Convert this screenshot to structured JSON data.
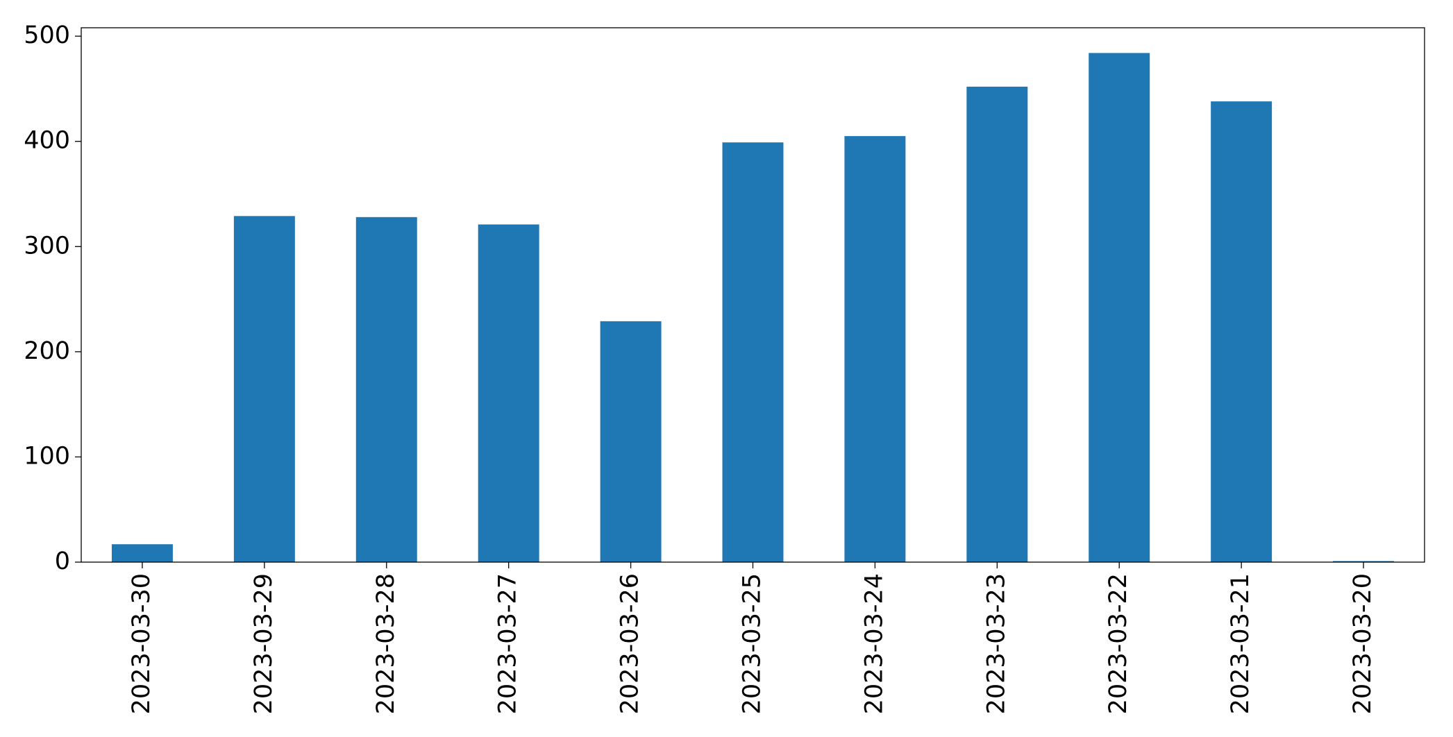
{
  "chart_data": {
    "type": "bar",
    "categories": [
      "2023-03-30",
      "2023-03-29",
      "2023-03-28",
      "2023-03-27",
      "2023-03-26",
      "2023-03-25",
      "2023-03-24",
      "2023-03-23",
      "2023-03-22",
      "2023-03-21",
      "2023-03-20"
    ],
    "values": [
      17,
      329,
      328,
      321,
      229,
      399,
      405,
      452,
      484,
      438,
      1
    ],
    "color": "#1f77b4",
    "ylim": [
      0,
      508
    ],
    "yticks": [
      0,
      100,
      200,
      300,
      400,
      500
    ],
    "grid": false
  }
}
